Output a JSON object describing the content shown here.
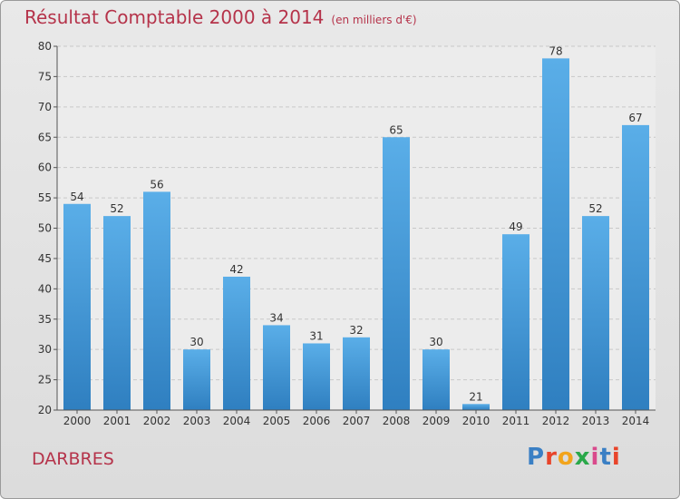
{
  "title": "Résultat Comptable 2000 à 2014",
  "unit": "(en milliers d'€)",
  "place": "DARBRES",
  "logo": {
    "text": "Proxiti",
    "colors": [
      "#3a7fc4",
      "#e8442a",
      "#f2a41c",
      "#2aa84a",
      "#d94a8c",
      "#3a7fc4",
      "#e8442a"
    ]
  },
  "colors": {
    "bar_top": "#5aaee8",
    "bar_bottom": "#2f7fc0",
    "title": "#b5334a"
  },
  "chart_data": {
    "type": "bar",
    "categories": [
      "2000",
      "2001",
      "2002",
      "2003",
      "2004",
      "2005",
      "2006",
      "2007",
      "2008",
      "2009",
      "2010",
      "2011",
      "2012",
      "2013",
      "2014"
    ],
    "values": [
      54,
      52,
      56,
      30,
      42,
      34,
      31,
      32,
      65,
      30,
      21,
      49,
      78,
      52,
      67
    ],
    "title": "Résultat Comptable 2000 à 2014",
    "ylim": [
      20,
      80
    ],
    "yticks": [
      20,
      25,
      30,
      35,
      40,
      45,
      50,
      55,
      60,
      65,
      70,
      75,
      80
    ],
    "grid": true
  }
}
